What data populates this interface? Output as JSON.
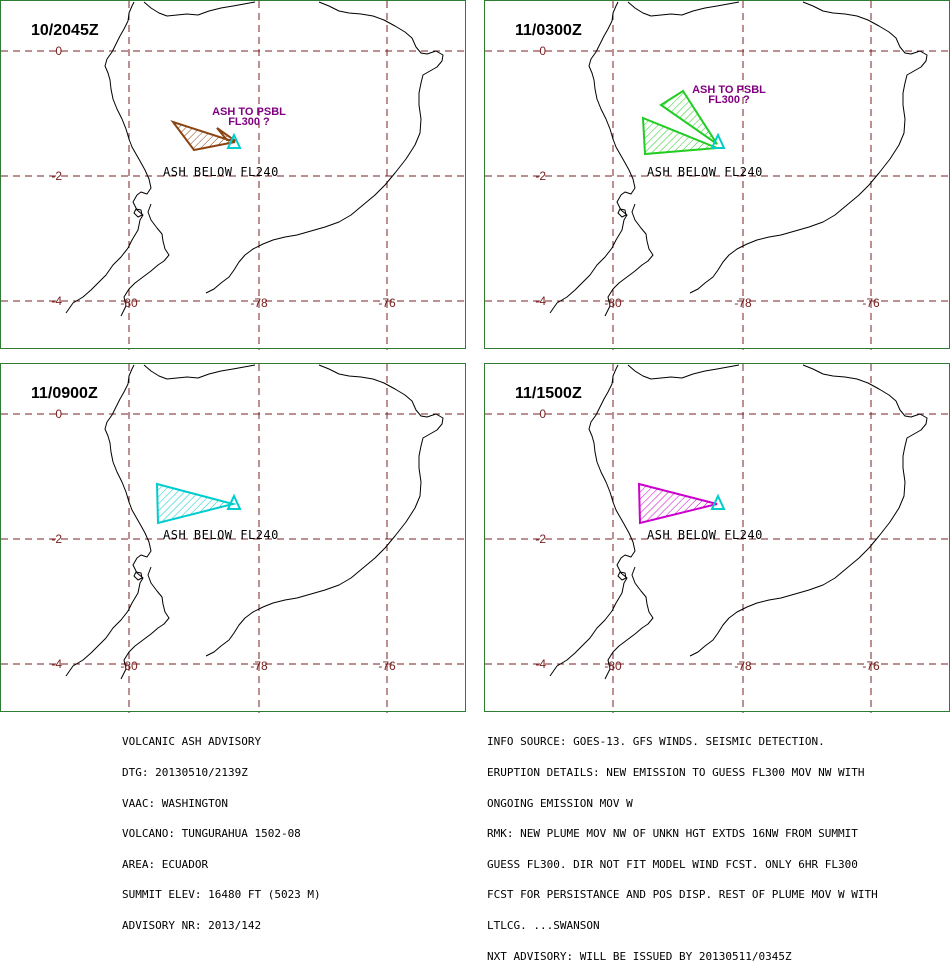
{
  "panels": [
    {
      "time": "10/2045Z",
      "label_below": "ASH BELOW FL240",
      "label_psbl": [
        "ASH TO PSBL",
        "FL300 ?"
      ],
      "color": "#8b4513"
    },
    {
      "time": "11/0300Z",
      "label_below": "ASH BELOW FL240",
      "label_psbl": [
        "ASH TO PSBL",
        "FL300 ?"
      ],
      "color": "#22cc22"
    },
    {
      "time": "11/0900Z",
      "label_below": "ASH BELOW FL240",
      "label_psbl": [],
      "color": "#00cccc"
    },
    {
      "time": "11/1500Z",
      "label_below": "ASH BELOW FL240",
      "label_psbl": [],
      "color": "#cc00cc"
    }
  ],
  "grid": {
    "lat_labels": [
      "0",
      "-2",
      "-4"
    ],
    "lon_labels": [
      "-80",
      "-78",
      "-76"
    ]
  },
  "volcano_color": "#00cccc",
  "advisory_left": [
    "VOLCANIC ASH ADVISORY",
    "DTG: 20130510/2139Z",
    "VAAC: WASHINGTON",
    "VOLCANO: TUNGURAHUA 1502-08",
    "AREA: ECUADOR",
    "SUMMIT ELEV: 16480 FT (5023 M)",
    "ADVISORY NR: 2013/142"
  ],
  "advisory_right": [
    "INFO SOURCE: GOES-13. GFS WINDS. SEISMIC DETECTION.",
    "ERUPTION DETAILS: NEW EMISSION TO GUESS FL300 MOV NW WITH",
    "ONGOING EMISSION MOV W",
    "RMK: NEW PLUME MOV NW OF UNKN HGT EXTDS 16NW FROM SUMMIT",
    "GUESS FL300. DIR NOT FIT MODEL WIND FCST. ONLY 6HR FL300",
    "FCST FOR PERSISTANCE AND POS DISP. REST OF PLUME MOV W WITH",
    "LTLCG. ...SWANSON",
    "NXT ADVISORY: WILL BE ISSUED BY 20130511/0345Z"
  ]
}
